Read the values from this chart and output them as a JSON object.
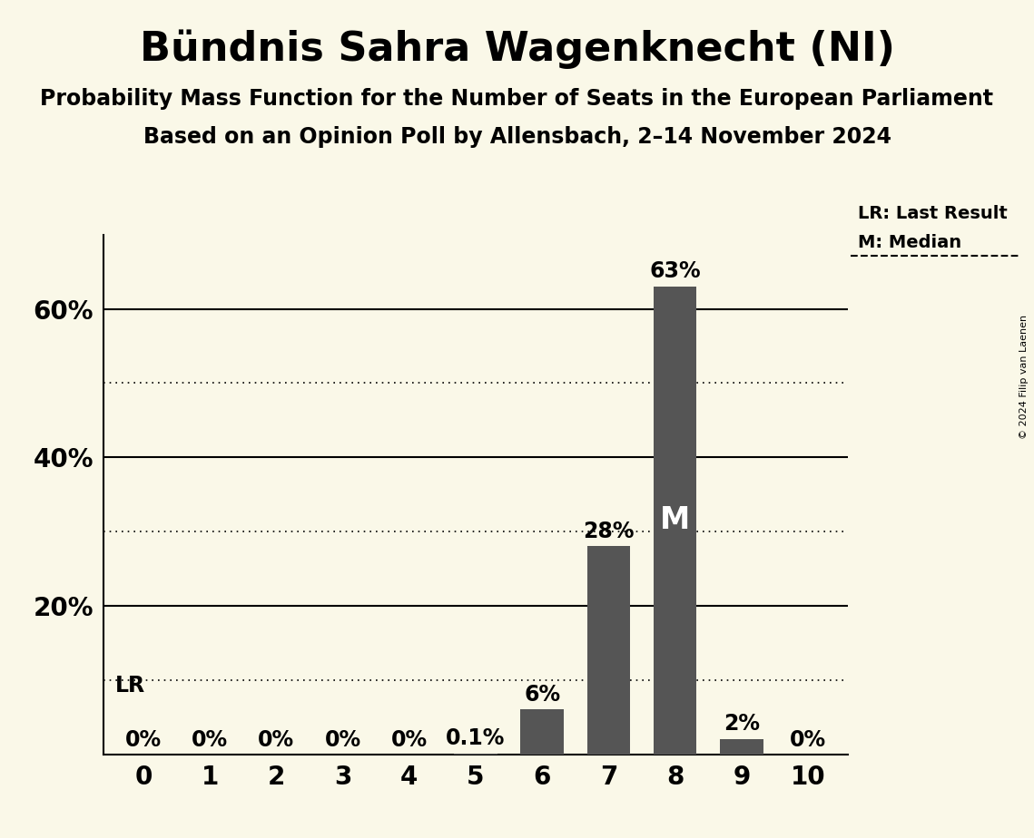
{
  "title": "Bündnis Sahra Wagenknecht (NI)",
  "subtitle1": "Probability Mass Function for the Number of Seats in the European Parliament",
  "subtitle2": "Based on an Opinion Poll by Allensbach, 2–14 November 2024",
  "copyright": "© 2024 Filip van Laenen",
  "seats": [
    0,
    1,
    2,
    3,
    4,
    5,
    6,
    7,
    8,
    9,
    10
  ],
  "probabilities": [
    0.0,
    0.0,
    0.0,
    0.0,
    0.0,
    0.001,
    0.06,
    0.28,
    0.63,
    0.02,
    0.0
  ],
  "bar_color": "#555555",
  "background_color": "#faf8e8",
  "median": 8,
  "last_result": 0,
  "bar_labels": [
    "0%",
    "0%",
    "0%",
    "0%",
    "0%",
    "0.1%",
    "6%",
    "28%",
    "63%",
    "2%",
    "0%"
  ],
  "median_label": "M",
  "lr_label": "LR",
  "legend_lr": "LR: Last Result",
  "legend_m": "M: Median",
  "ylim": [
    0,
    0.7
  ],
  "yticks": [
    0.0,
    0.2,
    0.4,
    0.6
  ],
  "ytick_labels": [
    "",
    "20%",
    "40%",
    "60%"
  ],
  "dotted_lines": [
    0.1,
    0.3,
    0.5
  ],
  "solid_lines": [
    0.2,
    0.4,
    0.6
  ],
  "title_fontsize": 32,
  "subtitle_fontsize": 17,
  "label_fontsize": 17,
  "tick_fontsize": 20,
  "bar_width": 0.65
}
